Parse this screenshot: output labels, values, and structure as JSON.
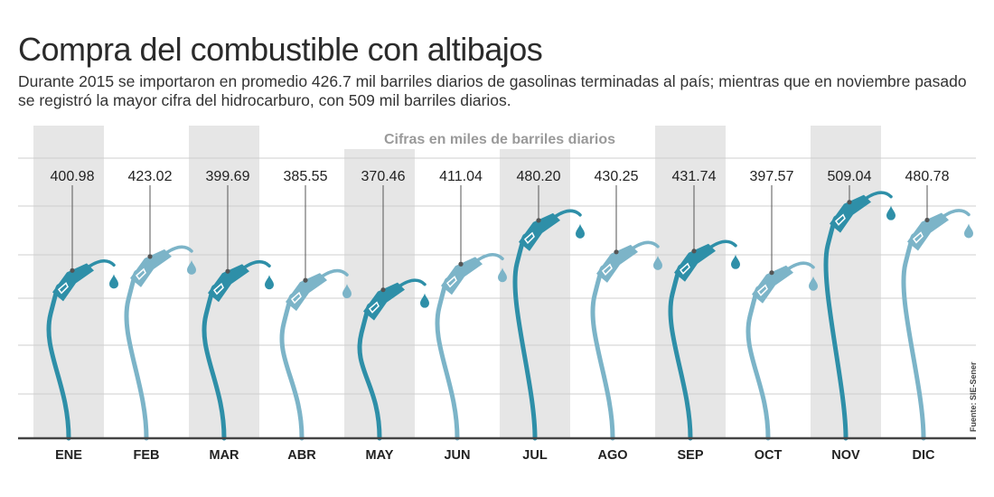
{
  "title": "Compra del combustible con altibajos",
  "subtitle": "Durante 2015 se importaron en promedio 426.7 mil barriles diarios de gasolinas terminadas al país; mientras que en noviembre pasado se registró la mayor cifra del hidrocarburo, con 509 mil barriles diarios.",
  "source": "Fuente: SIE-Sener",
  "colors": {
    "dark": "#2e8fa8",
    "light": "#7cb4c8",
    "band": "#e6e6e6",
    "grid": "#cfcfcf",
    "axis": "#444444"
  },
  "chart_data": {
    "type": "bar",
    "title": "Compra del combustible con altibajos",
    "note": "Cifras en miles de barriles diarios",
    "unit": "miles de barriles diarios",
    "categories": [
      "ENE",
      "FEB",
      "MAR",
      "ABR",
      "MAY",
      "JUN",
      "JUL",
      "AGO",
      "SEP",
      "OCT",
      "NOV",
      "DIC"
    ],
    "values": [
      400.98,
      423.02,
      399.69,
      385.55,
      370.46,
      411.04,
      480.2,
      430.25,
      431.74,
      397.57,
      509.04,
      480.78
    ],
    "labels": [
      "400.98",
      "423.02",
      "399.69",
      "385.55",
      "370.46",
      "411.04",
      "480.20",
      "430.25",
      "431.74",
      "397.57",
      "509.04",
      "480.78"
    ],
    "marks": [
      "dark",
      "light",
      "dark",
      "light",
      "dark",
      "light",
      "dark",
      "light",
      "dark",
      "light",
      "dark",
      "light"
    ],
    "average": 426.7,
    "ylim": [
      300,
      520
    ],
    "grid": true
  }
}
